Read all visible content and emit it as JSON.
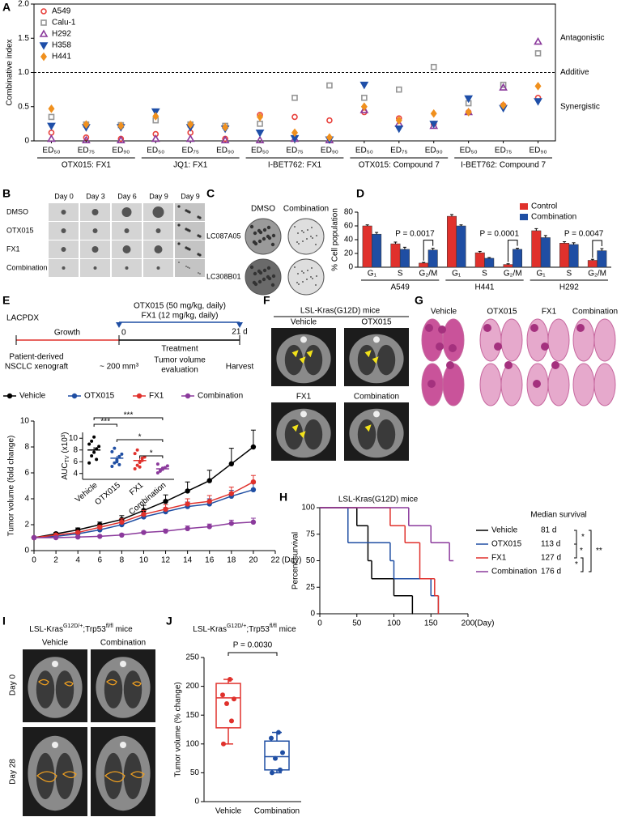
{
  "panel_labels": [
    "A",
    "B",
    "C",
    "D",
    "E",
    "F",
    "G",
    "H",
    "I",
    "J"
  ],
  "spheroids": {
    "columns": [
      "Day 0",
      "Day 3",
      "Day 6",
      "Day 9",
      "Day 9"
    ],
    "rows": [
      "DMSO",
      "OTX015",
      "FX1",
      "Combination"
    ]
  },
  "colonies": {
    "columns": [
      "DMSO",
      "Combination"
    ],
    "rows": [
      "LC087A05",
      "LC308B01"
    ]
  },
  "schema": {
    "model": "LACPDX",
    "drugs": [
      "OTX015 (50 mg/kg, daily)",
      "FX1 (12 mg/kg, daily)"
    ],
    "phases": [
      "Growth",
      "Treatment"
    ],
    "days": [
      "0",
      "21 d"
    ],
    "start": [
      "Patient-derived",
      "NSCLC xenograft"
    ],
    "size": "~ 200 mm³",
    "evaluation": [
      "Tumor volume",
      "evaluation"
    ],
    "end": "Harvest"
  },
  "ct_scans": {
    "title": "LSL-Kras(G12D) mice",
    "panels": [
      "Vehicle",
      "OTX015",
      "FX1",
      "Combination"
    ]
  },
  "histology": {
    "labels": [
      "Vehicle",
      "OTX015",
      "FX1",
      "Combination"
    ]
  },
  "ct_p53": {
    "title_parts": [
      "LSL-Kras",
      "G12D/+",
      ";Trp53",
      "fl/fl",
      " mice"
    ],
    "columns": [
      "Vehicle",
      "Combination"
    ],
    "rows": [
      "Day 0",
      "Day 28"
    ]
  },
  "chart_data": [
    {
      "type": "scatter",
      "y_label": "Combinative index",
      "categories": [
        "ED₅₀",
        "ED₇₅",
        "ED₉₀",
        "ED₅₀",
        "ED₇₅",
        "ED₉₀",
        "ED₅₀",
        "ED₇₅",
        "ED₉₀",
        "ED₅₀",
        "ED₇₅",
        "ED₉₀",
        "ED₅₀",
        "ED₇₅",
        "ED₉₀"
      ],
      "groups": [
        "OTX015: FX1",
        "JQ1: FX1",
        "I-BET762: FX1",
        "OTX015: Compound 7",
        "I-BET762: Compound 7"
      ],
      "series": [
        {
          "name": "A549",
          "color": "#e8413c",
          "marker": "circle",
          "filled": false,
          "values": [
            0.12,
            0.05,
            0.03,
            0.1,
            0.12,
            0.03,
            0.38,
            0.35,
            0.3,
            0.42,
            0.33,
            0.25,
            0.42,
            0.52,
            0.63
          ]
        },
        {
          "name": "Calu-1",
          "color": "#959595",
          "marker": "square",
          "filled": false,
          "values": [
            0.35,
            0.24,
            0.23,
            0.3,
            0.24,
            0.22,
            0.25,
            0.63,
            0.81,
            0.63,
            0.75,
            1.08,
            0.55,
            0.82,
            1.28
          ]
        },
        {
          "name": "H292",
          "color": "#8b3a9c",
          "marker": "triangle-up",
          "filled": false,
          "values": [
            0.03,
            0.01,
            0.01,
            0.03,
            0.03,
            0.01,
            0.01,
            0.03,
            0.01,
            0.45,
            0.25,
            0.22,
            0.42,
            0.78,
            1.45
          ]
        },
        {
          "name": "H358",
          "color": "#1f4fa8",
          "marker": "triangle-down",
          "filled": true,
          "values": [
            0.22,
            0.2,
            0.2,
            0.43,
            0.2,
            0.18,
            0.12,
            0.04,
            0.02,
            0.82,
            0.18,
            0.25,
            0.62,
            0.48,
            0.58
          ]
        },
        {
          "name": "H441",
          "color": "#f0901e",
          "marker": "diamond",
          "filled": true,
          "values": [
            0.47,
            0.24,
            0.22,
            0.36,
            0.24,
            0.2,
            0.35,
            0.12,
            0.05,
            0.5,
            0.3,
            0.4,
            0.42,
            0.52,
            0.8
          ]
        }
      ],
      "ylim": [
        0,
        2
      ],
      "yticks": [
        0,
        0.5,
        {
          "value": 1,
          "label": "1.0"
        },
        1.5,
        {
          "value": 2,
          "label": "2.0"
        }
      ],
      "reference_line": 1,
      "reference_label": "Additive",
      "annotations": [
        "Antagonistic",
        "Synergistic"
      ]
    },
    {
      "type": "bar",
      "y_label": "% Cell population",
      "categories": [
        "G₁",
        "S",
        "G₂/M",
        "G₁",
        "S",
        "G₂/M",
        "G₁",
        "S",
        "G₂/M"
      ],
      "groups": [
        "A549",
        "H441",
        "H292"
      ],
      "series": [
        {
          "name": "Control",
          "color": "#e0312c",
          "values": [
            60,
            34,
            6,
            74,
            21,
            4,
            53,
            35,
            10
          ],
          "errors": [
            1.5,
            2.5,
            1,
            2.5,
            2,
            1,
            3,
            2,
            1.5
          ]
        },
        {
          "name": "Combination",
          "color": "#1f4ea3",
          "values": [
            48,
            26,
            25,
            60,
            13,
            26,
            43,
            33,
            24
          ],
          "errors": [
            2.5,
            3,
            2.5,
            1.5,
            1,
            1.5,
            3,
            2.5,
            3
          ]
        }
      ],
      "ylim": [
        0,
        80
      ],
      "yticks": [
        0,
        20,
        40,
        60,
        80
      ],
      "p_values": [
        "P = 0.0017",
        "P = 0.0001",
        "P = 0.0047"
      ]
    },
    {
      "type": "line",
      "y_label": "Tumor volume  (fold change)",
      "x_label": "(Day)",
      "x": [
        0,
        2,
        4,
        6,
        8,
        10,
        12,
        14,
        16,
        18,
        20
      ],
      "xlim": [
        0,
        22
      ],
      "xticks": [
        0,
        2,
        4,
        6,
        8,
        10,
        12,
        14,
        16,
        18,
        20,
        22
      ],
      "ylim": [
        0,
        10
      ],
      "yticks": [
        0,
        2,
        4,
        6,
        8,
        10
      ],
      "series": [
        {
          "name": "Vehicle",
          "color": "#000000",
          "values": [
            1,
            1.3,
            1.6,
            2.0,
            2.4,
            3.1,
            3.8,
            4.6,
            5.4,
            6.7,
            8.0
          ],
          "errors": [
            0,
            0.1,
            0.15,
            0.2,
            0.3,
            0.4,
            0.5,
            0.7,
            0.8,
            1.2,
            1.3
          ]
        },
        {
          "name": "OTX015",
          "color": "#1f4ea3",
          "values": [
            1,
            1.1,
            1.3,
            1.6,
            2.0,
            2.6,
            3.0,
            3.4,
            3.6,
            4.2,
            4.7
          ],
          "errors": [
            0,
            0.05,
            0.1,
            0.15,
            0.2,
            0.3,
            0.3,
            0.35,
            0.4,
            0.45,
            0.5
          ]
        },
        {
          "name": "FX1",
          "color": "#e0312c",
          "values": [
            1,
            1.2,
            1.4,
            1.8,
            2.2,
            2.8,
            3.2,
            3.6,
            3.8,
            4.4,
            5.3
          ],
          "errors": [
            0,
            0.05,
            0.1,
            0.15,
            0.25,
            0.3,
            0.35,
            0.4,
            0.45,
            0.5,
            0.5
          ]
        },
        {
          "name": "Combination",
          "color": "#8b3a9c",
          "values": [
            1,
            1.0,
            1.05,
            1.1,
            1.2,
            1.4,
            1.5,
            1.7,
            1.85,
            2.1,
            2.2
          ],
          "errors": [
            0,
            0.05,
            0.05,
            0.05,
            0.1,
            0.1,
            0.15,
            0.2,
            0.2,
            0.25,
            0.3
          ]
        }
      ]
    },
    {
      "type": "strip",
      "y_label_parts": [
        "AUC",
        "TV",
        " (x10³)"
      ],
      "categories": [
        "Vehicle",
        "OTX015",
        "FX1",
        "Combination"
      ],
      "colors": [
        "#000000",
        "#1f4ea3",
        "#e0312c",
        "#8b3a9c"
      ],
      "points": [
        [
          5.8,
          7.0,
          7.6,
          8.2,
          8.6,
          9.0,
          9.5,
          10.2,
          6.4
        ],
        [
          5.2,
          5.8,
          6.3,
          6.9,
          7.3,
          7.7,
          8.3,
          6.0,
          5.5
        ],
        [
          4.8,
          5.4,
          5.9,
          6.2,
          6.8,
          7.4,
          8.0,
          5.1,
          6.6
        ],
        [
          4.1,
          4.4,
          4.7,
          5.0,
          5.3,
          5.6,
          4.5,
          4.9
        ]
      ],
      "means": [
        8.0,
        6.6,
        6.2,
        4.8
      ],
      "errors": [
        0.5,
        0.4,
        0.4,
        0.2
      ],
      "ylim": [
        3,
        11
      ],
      "yticks": [
        4,
        6,
        8,
        10
      ],
      "significance": [
        "***",
        "***",
        "*",
        "*"
      ]
    },
    {
      "type": "step",
      "title": "LSL-Kras(G12D) mice",
      "y_label": "Percent survival",
      "x_label": "(Day)",
      "legend_title": "Median survival",
      "series": [
        {
          "name": "Vehicle",
          "color": "#000000",
          "x": [
            0,
            50,
            65,
            70,
            100,
            125
          ],
          "values": [
            100,
            83,
            50,
            33,
            17,
            0
          ],
          "median_label": "81 d"
        },
        {
          "name": "OTX015",
          "color": "#1f4ea3",
          "x": [
            0,
            38,
            95,
            100,
            150,
            160
          ],
          "values": [
            100,
            67,
            50,
            33,
            17,
            0
          ],
          "median_label": "113 d"
        },
        {
          "name": "FX1",
          "color": "#e0312c",
          "x": [
            0,
            95,
            115,
            135,
            155,
            160
          ],
          "values": [
            100,
            83,
            67,
            33,
            17,
            0
          ],
          "median_label": "127 d"
        },
        {
          "name": "Combination",
          "color": "#8b3a9c",
          "x": [
            0,
            120,
            150,
            175,
            180
          ],
          "values": [
            100,
            83,
            67,
            50,
            50
          ],
          "median_label": "176 d"
        }
      ],
      "xlim": [
        0,
        200
      ],
      "xticks": [
        0,
        50,
        100,
        150,
        200
      ],
      "ylim": [
        0,
        100
      ],
      "yticks": [
        0,
        25,
        50,
        75,
        100
      ],
      "significance": [
        "*",
        "**",
        "*",
        "*"
      ]
    },
    {
      "type": "box",
      "title_parts": [
        "LSL-Kras",
        "G12D/+",
        ";Trp53",
        "fl/fl",
        " mice"
      ],
      "y_label": "Tumor volume (% change)",
      "categories": [
        "Vehicle",
        "Combination"
      ],
      "series": [
        {
          "color": "#e0312c",
          "points": [
            100,
            140,
            170,
            178,
            185,
            212
          ],
          "whisker_low": 100,
          "q1": 128,
          "median": 180,
          "q3": 205,
          "whisker_high": 212
        },
        {
          "color": "#1f4ea3",
          "points": [
            50,
            55,
            75,
            85,
            110,
            120
          ],
          "whisker_low": 50,
          "q1": 55,
          "median": 78,
          "q3": 105,
          "whisker_high": 120
        }
      ],
      "ylim": [
        0,
        250
      ],
      "yticks": [
        0,
        50,
        100,
        150,
        200,
        250
      ],
      "p_value": "P = 0.0030"
    }
  ]
}
